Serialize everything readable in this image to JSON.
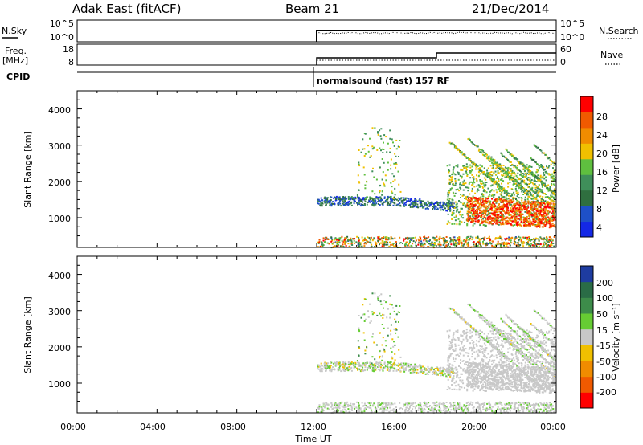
{
  "header": {
    "station": "Adak East (fitACF)",
    "beam": "Beam 21",
    "date": "21/Dec/2014"
  },
  "panels": {
    "nsky": {
      "left_label": "N.Sky",
      "right_label": "N.Search",
      "left_ticks": [
        "10^5",
        "10^0"
      ],
      "right_ticks": [
        "10^5",
        "10^0"
      ]
    },
    "freq": {
      "left_label_line1": "Freq.",
      "left_label_line2": "[MHz]",
      "right_label": "Nave",
      "left_ticks": [
        "18",
        "8"
      ],
      "right_ticks": [
        "60",
        "0"
      ]
    },
    "cpid": {
      "label": "CPID",
      "program": "normalsound (fast) 157 RF"
    },
    "power": {
      "ylabel": "Slant Range [km]",
      "yticks": [
        "4000",
        "3000",
        "2000",
        "1000"
      ],
      "colorbar_label": "Power [dB]",
      "colorbar_ticks": [
        "28",
        "24",
        "20",
        "16",
        "12",
        "8",
        "4"
      ],
      "colors": [
        "#1428e6",
        "#1e50c8",
        "#2f6f3f",
        "#3f8f5a",
        "#5fbf3f",
        "#f0c000",
        "#f08c00",
        "#f05a00",
        "#ff0000"
      ]
    },
    "velocity": {
      "ylabel": "Slant Range [km]",
      "yticks": [
        "4000",
        "3000",
        "2000",
        "1000"
      ],
      "colorbar_label": "Velocity [m s⁻¹]",
      "colorbar_ticks": [
        "200",
        "100",
        "50",
        "15",
        "-15",
        "-50",
        "-100",
        "-200"
      ],
      "colors": [
        "#1e3ca0",
        "#2a6c46",
        "#3d8c4a",
        "#66cc33",
        "#c8c8c8",
        "#f0c000",
        "#f08c00",
        "#f05a00",
        "#ff0000"
      ]
    }
  },
  "xaxis": {
    "label": "Time UT",
    "ticks": [
      "00:00",
      "04:00",
      "08:00",
      "12:00",
      "16:00",
      "20:00",
      "00:00"
    ]
  },
  "chart_data": {
    "type": "heatmap",
    "x_range_hours": [
      0,
      24
    ],
    "data_start_hour": 12,
    "y_range_km": [
      180,
      4500
    ],
    "power_scale_db": [
      0,
      30
    ],
    "velocity_scale_ms": [
      -250,
      250
    ],
    "grid": false,
    "features": [
      {
        "name": "ground_scatter_band",
        "t_start": 12,
        "t_end": 24,
        "range_km": [
          180,
          500
        ]
      },
      {
        "name": "E_region_band",
        "t_start": 12,
        "t_end": 19,
        "range_km": [
          1300,
          1600
        ]
      },
      {
        "name": "F_region_streaks",
        "t_start": 18,
        "t_end": 24,
        "range_km": [
          800,
          3200
        ]
      },
      {
        "name": "strong_power_region",
        "t_start": 19.5,
        "t_end": 24,
        "range_km": [
          800,
          1600
        ],
        "power_db": 26
      }
    ]
  }
}
